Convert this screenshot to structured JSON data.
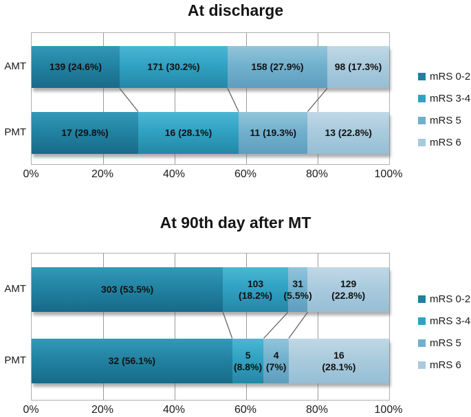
{
  "series_colors": {
    "mRS 0-2": "#20809f",
    "mRS 3-4": "#2fa3c4",
    "mRS 5": "#6fb0cc",
    "mRS 6": "#a8cadd"
  },
  "chart_data": [
    {
      "type": "bar",
      "orientation": "horizontal",
      "stacked": true,
      "title": "At discharge",
      "categories": [
        "AMT",
        "PMT"
      ],
      "series": [
        {
          "name": "mRS 0-2",
          "counts": [
            139,
            17
          ],
          "percents": [
            24.6,
            29.8
          ]
        },
        {
          "name": "mRS 3-4",
          "counts": [
            171,
            16
          ],
          "percents": [
            30.2,
            28.1
          ]
        },
        {
          "name": "mRS 5",
          "counts": [
            158,
            11
          ],
          "percents": [
            27.9,
            19.3
          ]
        },
        {
          "name": "mRS 6",
          "counts": [
            98,
            13
          ],
          "percents": [
            17.3,
            22.8
          ]
        }
      ],
      "segment_labels": [
        [
          [
            "139 (24.6%)"
          ],
          [
            "171 (30.2%)"
          ],
          [
            "158 (27.9%)"
          ],
          [
            "98 (17.3%)"
          ]
        ],
        [
          [
            "17 (29.8%)"
          ],
          [
            "16 (28.1%)"
          ],
          [
            "11 (19.3%)"
          ],
          [
            "13 (22.8%)"
          ]
        ]
      ],
      "x_ticks": [
        "0%",
        "20%",
        "40%",
        "60%",
        "80%",
        "100%"
      ],
      "xlim": [
        0,
        100
      ],
      "grid": true,
      "legend": [
        "mRS 0-2",
        "mRS 3-4",
        "mRS 5",
        "mRS 6"
      ],
      "legend_position": "right"
    },
    {
      "type": "bar",
      "orientation": "horizontal",
      "stacked": true,
      "title": "At 90th day after MT",
      "categories": [
        "AMT",
        "PMT"
      ],
      "series": [
        {
          "name": "mRS 0-2",
          "counts": [
            303,
            32
          ],
          "percents": [
            53.5,
            56.1
          ]
        },
        {
          "name": "mRS 3-4",
          "counts": [
            103,
            5
          ],
          "percents": [
            18.2,
            8.8
          ]
        },
        {
          "name": "mRS 5",
          "counts": [
            31,
            4
          ],
          "percents": [
            5.5,
            7.0
          ]
        },
        {
          "name": "mRS 6",
          "counts": [
            129,
            16
          ],
          "percents": [
            22.8,
            28.1
          ]
        }
      ],
      "segment_labels": [
        [
          [
            "303 (53.5%)"
          ],
          [
            "103",
            "(18.2%)"
          ],
          [
            "31",
            "(5.5%)"
          ],
          [
            "129",
            "(22.8%)"
          ]
        ],
        [
          [
            "32 (56.1%)"
          ],
          [
            "5",
            "(8.8%)"
          ],
          [
            "4",
            "(7%)"
          ],
          [
            "16",
            "(28.1%)"
          ]
        ]
      ],
      "x_ticks": [
        "0%",
        "20%",
        "40%",
        "60%",
        "80%",
        "100%"
      ],
      "xlim": [
        0,
        100
      ],
      "grid": true,
      "legend": [
        "mRS 0-2",
        "mRS 3-4",
        "mRS 5",
        "mRS 6"
      ],
      "legend_position": "right"
    }
  ]
}
